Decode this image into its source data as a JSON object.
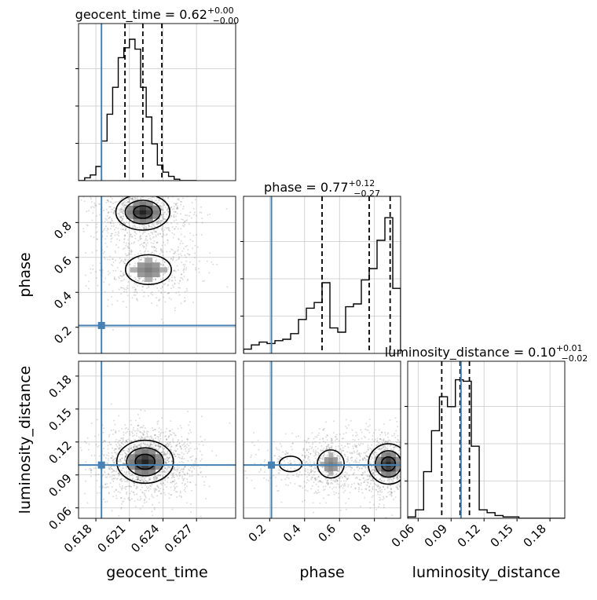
{
  "chart_data": {
    "type": "corner",
    "parameters": [
      {
        "name": "geocent_time",
        "axis_label": "geocent_time",
        "title": {
          "prefix": "geocent_time = ",
          "value": "0.62",
          "plus": "+0.00",
          "minus": "−0.00"
        },
        "range": [
          0.61645,
          0.6305
        ],
        "ticks": [
          0.618,
          0.621,
          0.624,
          0.627
        ],
        "tick_labels": [
          "0.618",
          "0.621",
          "0.624",
          "0.627"
        ],
        "truth": 0.6185,
        "quantiles": [
          0.6206,
          0.6222,
          0.6239
        ],
        "hist": {
          "edges": [
            0.61645,
            0.617,
            0.6175,
            0.618,
            0.6185,
            0.619,
            0.6195,
            0.62,
            0.6205,
            0.621,
            0.6215,
            0.622,
            0.6225,
            0.623,
            0.6235,
            0.624,
            0.6245,
            0.625,
            0.6255,
            0.626,
            0.6265,
            0.627
          ],
          "counts": [
            0,
            0.02,
            0.04,
            0.1,
            0.28,
            0.47,
            0.66,
            0.87,
            0.94,
            1.0,
            0.93,
            0.66,
            0.45,
            0.26,
            0.11,
            0.06,
            0.03,
            0.01,
            0,
            0,
            0
          ]
        }
      },
      {
        "name": "phase",
        "axis_label": "phase",
        "title": {
          "prefix": "phase = ",
          "value": "0.77",
          "plus": "+0.12",
          "minus": "−0.27"
        },
        "range": [
          0.05,
          0.95
        ],
        "ticks": [
          0.2,
          0.4,
          0.6,
          0.8
        ],
        "tick_labels": [
          "0.2",
          "0.4",
          "0.6",
          "0.8"
        ],
        "truth": 0.21,
        "quantiles": [
          0.5,
          0.77,
          0.89
        ],
        "hist": {
          "edges": [
            0.05,
            0.095,
            0.14,
            0.185,
            0.23,
            0.275,
            0.32,
            0.365,
            0.41,
            0.455,
            0.5,
            0.545,
            0.59,
            0.635,
            0.68,
            0.725,
            0.77,
            0.815,
            0.86,
            0.905,
            0.95
          ],
          "counts": [
            0.03,
            0.06,
            0.08,
            0.07,
            0.09,
            0.1,
            0.14,
            0.24,
            0.32,
            0.36,
            0.5,
            0.18,
            0.15,
            0.33,
            0.35,
            0.52,
            0.6,
            0.8,
            0.96,
            0.46
          ]
        }
      },
      {
        "name": "luminosity_distance",
        "axis_label": "luminosity_distance",
        "title": {
          "prefix": "luminosity_distance = ",
          "value": "0.10",
          "plus": "+0.01",
          "minus": "−0.02"
        },
        "range": [
          0.0505,
          0.1935
        ],
        "ticks": [
          0.06,
          0.09,
          0.12,
          0.15,
          0.18
        ],
        "tick_labels": [
          "0.06",
          "0.09",
          "0.12",
          "0.15",
          "0.18"
        ],
        "truth": 0.099,
        "quantiles": [
          0.0815,
          0.0982,
          0.1067
        ],
        "hist": {
          "edges": [
            0.0505,
            0.0577,
            0.065,
            0.0722,
            0.0794,
            0.0867,
            0.0939,
            0.1011,
            0.1084,
            0.1156,
            0.1228,
            0.13,
            0.1373,
            0.1445,
            0.1517,
            0.159,
            0.1662,
            0.1734,
            0.1807,
            0.1879,
            0.1935
          ],
          "counts": [
            0.01,
            0.06,
            0.33,
            0.62,
            0.86,
            0.79,
            0.98,
            0.97,
            0.51,
            0.06,
            0.04,
            0.02,
            0.01,
            0.01,
            0,
            0,
            0,
            0,
            0,
            0
          ]
        }
      }
    ],
    "pairs": [
      {
        "x": "geocent_time",
        "y": "phase",
        "modes": [
          {
            "cx": 0.6222,
            "cy": 0.86,
            "sx": 0.00105,
            "sy": 0.045,
            "w": 1.0
          },
          {
            "cx": 0.6227,
            "cy": 0.53,
            "sx": 0.0012,
            "sy": 0.05,
            "w": 0.55
          }
        ]
      },
      {
        "x": "geocent_time",
        "y": "luminosity_distance",
        "modes": [
          {
            "cx": 0.6224,
            "cy": 0.102,
            "sx": 0.0011,
            "sy": 0.0085,
            "w": 1.0
          }
        ]
      },
      {
        "x": "phase",
        "y": "luminosity_distance",
        "modes": [
          {
            "cx": 0.88,
            "cy": 0.1,
            "sx": 0.05,
            "sy": 0.008,
            "w": 1.0
          },
          {
            "cx": 0.55,
            "cy": 0.1,
            "sx": 0.045,
            "sy": 0.0075,
            "w": 0.55
          },
          {
            "cx": 0.32,
            "cy": 0.1,
            "sx": 0.06,
            "sy": 0.0065,
            "w": 0.22
          }
        ]
      }
    ],
    "truth_color": "#4682b4",
    "hist_color": "#000000",
    "grid": true
  }
}
